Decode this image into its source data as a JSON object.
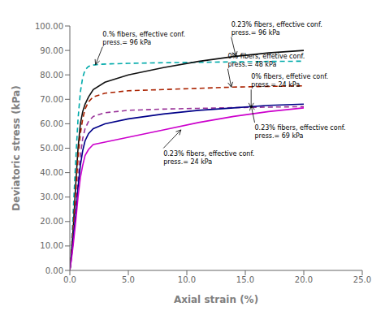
{
  "chart_data": {
    "type": "line",
    "xlabel": "Axial strain (%)",
    "ylabel": "Deviatoric stress (kPa)",
    "xlim": [
      0,
      25
    ],
    "ylim": [
      0,
      100
    ],
    "xticks": [
      {
        "value": 0,
        "label": "0.0"
      },
      {
        "value": 5,
        "label": "5.0"
      },
      {
        "value": 10,
        "label": "10.0"
      },
      {
        "value": 15,
        "label": "15.0"
      },
      {
        "value": 20,
        "label": "20.0"
      },
      {
        "value": 25,
        "label": "25.0"
      }
    ],
    "yticks": [
      {
        "value": 0,
        "label": "0.00"
      },
      {
        "value": 10,
        "label": "10.00"
      },
      {
        "value": 20,
        "label": "20.00"
      },
      {
        "value": 30,
        "label": "30.00"
      },
      {
        "value": 40,
        "label": "40.00"
      },
      {
        "value": 50,
        "label": "50.00"
      },
      {
        "value": 60,
        "label": "60.00"
      },
      {
        "value": 70,
        "label": "70.00"
      },
      {
        "value": 80,
        "label": "80.00"
      },
      {
        "value": 90,
        "label": "90.00"
      },
      {
        "value": 100,
        "label": "100.00"
      }
    ],
    "series": [
      {
        "color": "#00AAAA",
        "line_style": "dashed",
        "x": [
          0,
          0.15,
          0.3,
          0.5,
          0.7,
          0.9,
          1.1,
          1.3,
          1.6,
          2.0,
          2.5,
          3.5,
          5.0,
          7.0,
          10.0,
          14.0,
          17.0,
          20.0
        ],
        "values": [
          0,
          10,
          25,
          45,
          62,
          73,
          79,
          82,
          83.5,
          84.0,
          84.3,
          84.5,
          84.7,
          84.9,
          85.1,
          85.3,
          85.5,
          85.6
        ]
      },
      {
        "color": "#111111",
        "line_style": "solid",
        "x": [
          0,
          0.15,
          0.3,
          0.5,
          0.7,
          0.9,
          1.1,
          1.3,
          1.6,
          2.0,
          3.0,
          5.0,
          8.0,
          11.0,
          14.0,
          17.0,
          20.0
        ],
        "values": [
          0,
          8,
          18,
          35,
          50,
          60,
          65,
          68,
          71,
          74,
          77,
          80,
          83,
          85.5,
          87.5,
          89.0,
          90.0
        ]
      },
      {
        "color": "#AA2200",
        "line_style": "dashed",
        "x": [
          0,
          0.15,
          0.3,
          0.5,
          0.7,
          0.9,
          1.1,
          1.3,
          1.6,
          2.0,
          3.0,
          5.0,
          8.0,
          11.0,
          14.0,
          17.0,
          20.0
        ],
        "values": [
          0,
          8,
          18,
          32,
          46,
          56,
          62,
          66,
          69,
          71,
          72.5,
          73.5,
          74.0,
          74.5,
          75.0,
          75.3,
          75.5
        ]
      },
      {
        "color": "#993399",
        "line_style": "dashed",
        "x": [
          0,
          0.15,
          0.3,
          0.5,
          0.7,
          0.9,
          1.1,
          1.3,
          1.6,
          2.0,
          3.0,
          5.0,
          8.0,
          11.0,
          14.0,
          17.0,
          20.0
        ],
        "values": [
          0,
          6,
          14,
          25,
          37,
          47,
          54,
          58,
          61,
          63,
          64.5,
          65.5,
          66.0,
          66.3,
          66.6,
          66.8,
          67.0
        ]
      },
      {
        "color": "#000088",
        "line_style": "solid",
        "x": [
          0,
          0.15,
          0.3,
          0.5,
          0.7,
          0.9,
          1.1,
          1.3,
          1.6,
          2.0,
          3.0,
          5.0,
          8.0,
          11.0,
          14.0,
          17.0,
          20.0
        ],
        "values": [
          0,
          6,
          13,
          23,
          34,
          43,
          49,
          53,
          56,
          58,
          60,
          62,
          64,
          65.5,
          66.5,
          67.5,
          68.0
        ]
      },
      {
        "color": "#CC00CC",
        "line_style": "solid",
        "x": [
          0,
          0.15,
          0.3,
          0.5,
          0.7,
          0.9,
          1.1,
          1.3,
          1.6,
          2.0,
          2.5,
          3.0,
          5.0,
          8.0,
          11.0,
          14.0,
          17.0,
          20.0
        ],
        "values": [
          0,
          5,
          11,
          20,
          30,
          38,
          43,
          47,
          49.5,
          51.5,
          52.0,
          52.5,
          54.5,
          57.5,
          60.5,
          63.0,
          65.0,
          66.5
        ]
      }
    ],
    "annotations": [
      {
        "text": "0.% fibers, effective conf.\npress.= 96 kPa",
        "xy": [
          2.2,
          84.2
        ],
        "xytext": [
          2.8,
          91.5
        ]
      },
      {
        "text": "0.23% fibers, effective conf.\npress.= 96 kPa",
        "xy": [
          14.2,
          87.5
        ],
        "xytext": [
          13.8,
          95.5
        ]
      },
      {
        "text": "0% fibers, effetive conf.\npress.= 48 kPa",
        "xy": [
          13.8,
          75.0
        ],
        "xytext": [
          13.5,
          82.5
        ]
      },
      {
        "text": "0% fibers, effetive conf.\npress.= 24 kPa",
        "xy": [
          15.5,
          66.5
        ],
        "xytext": [
          15.5,
          74.0
        ]
      },
      {
        "text": "0.23% fibers, effective conf.\npress.= 69 kPa",
        "xy": [
          15.5,
          67.5
        ],
        "xytext": [
          15.8,
          60.5
        ]
      },
      {
        "text": "0.23% fibers, effective conf.\npress.= 24 kPa",
        "xy": [
          9.5,
          57.5
        ],
        "xytext": [
          8.0,
          50.0
        ]
      }
    ]
  }
}
